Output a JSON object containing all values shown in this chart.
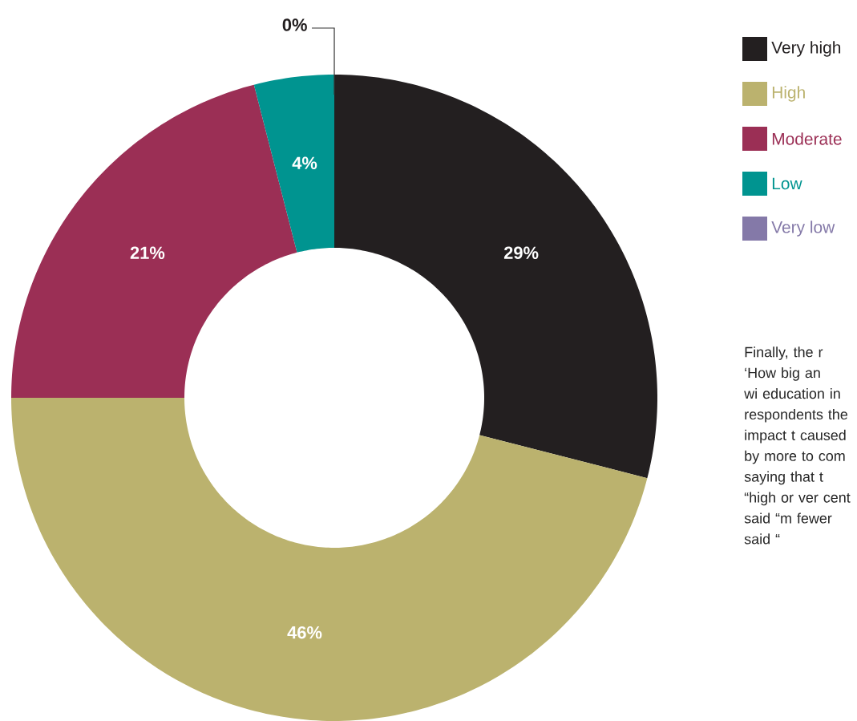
{
  "chart_data": {
    "type": "donut",
    "categories": [
      "Very high",
      "High",
      "Moderate",
      "Low",
      "Very low"
    ],
    "values": [
      29,
      46,
      21,
      4,
      0
    ],
    "colors": [
      "#231f20",
      "#bbb26e",
      "#9b2f55",
      "#009490",
      "#8479a8"
    ],
    "value_labels": [
      "29%",
      "46%",
      "21%",
      "4%",
      "0%"
    ],
    "legend": "top right",
    "annotations": [
      "Finally, the r ‘How big an wi education in respondents the impact t caused by more to com saying that t “high or ver cent said “m fewer said “"
    ]
  }
}
